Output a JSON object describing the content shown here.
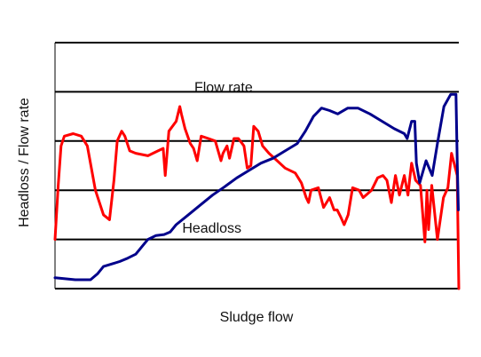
{
  "chart_data": {
    "type": "line",
    "title": "",
    "xlabel": "Sludge flow",
    "ylabel": "Headloss / Flow rate",
    "xlim": [
      0,
      100
    ],
    "ylim": [
      0,
      5
    ],
    "grid": "horizontal",
    "legend": "none",
    "series": [
      {
        "name": "Flow rate",
        "color": "#ff0000",
        "points": [
          [
            0,
            1.0
          ],
          [
            0.8,
            2.1
          ],
          [
            1.5,
            2.9
          ],
          [
            2.3,
            3.1
          ],
          [
            4.5,
            3.15
          ],
          [
            6.5,
            3.1
          ],
          [
            8,
            2.9
          ],
          [
            10,
            2.0
          ],
          [
            12,
            1.5
          ],
          [
            13.5,
            1.4
          ],
          [
            14.6,
            2.2
          ],
          [
            15.4,
            3.0
          ],
          [
            16.5,
            3.2
          ],
          [
            17.3,
            3.1
          ],
          [
            18.5,
            2.8
          ],
          [
            20,
            2.75
          ],
          [
            23,
            2.7
          ],
          [
            25.5,
            2.8
          ],
          [
            26.8,
            2.85
          ],
          [
            27.3,
            2.3
          ],
          [
            28.2,
            3.2
          ],
          [
            30,
            3.4
          ],
          [
            30.9,
            3.7
          ],
          [
            31.3,
            3.55
          ],
          [
            32.2,
            3.25
          ],
          [
            33.5,
            2.95
          ],
          [
            34.3,
            2.85
          ],
          [
            35.2,
            2.6
          ],
          [
            36.2,
            3.1
          ],
          [
            38,
            3.05
          ],
          [
            39.7,
            3.0
          ],
          [
            41.1,
            2.6
          ],
          [
            41.6,
            2.75
          ],
          [
            42.6,
            2.9
          ],
          [
            43.2,
            2.65
          ],
          [
            44.3,
            3.05
          ],
          [
            45.4,
            3.05
          ],
          [
            46.8,
            2.9
          ],
          [
            47.6,
            2.45
          ],
          [
            48.5,
            2.5
          ],
          [
            49.2,
            3.3
          ],
          [
            50.3,
            3.2
          ],
          [
            51.4,
            2.9
          ],
          [
            53,
            2.75
          ],
          [
            55,
            2.6
          ],
          [
            57,
            2.45
          ],
          [
            59.5,
            2.35
          ],
          [
            61,
            2.15
          ],
          [
            62.2,
            1.85
          ],
          [
            62.8,
            1.75
          ],
          [
            63.4,
            2.0
          ],
          [
            65.2,
            2.05
          ],
          [
            66.5,
            1.65
          ],
          [
            68,
            1.85
          ],
          [
            69.1,
            1.6
          ],
          [
            69.9,
            1.6
          ],
          [
            70.8,
            1.45
          ],
          [
            71.6,
            1.3
          ],
          [
            72.6,
            1.5
          ],
          [
            73.7,
            2.05
          ],
          [
            75.3,
            2.0
          ],
          [
            76.3,
            1.85
          ],
          [
            78.4,
            2.0
          ],
          [
            79.9,
            2.25
          ],
          [
            81.2,
            2.3
          ],
          [
            82.2,
            2.2
          ],
          [
            83.3,
            1.75
          ],
          [
            84.3,
            2.3
          ],
          [
            85.3,
            1.9
          ],
          [
            86.5,
            2.3
          ],
          [
            87.4,
            1.9
          ],
          [
            87.8,
            2.2
          ],
          [
            88.3,
            2.55
          ],
          [
            89.3,
            2.2
          ],
          [
            90.5,
            2.1
          ],
          [
            91.6,
            0.95
          ],
          [
            92.1,
            2.0
          ],
          [
            92.5,
            1.2
          ],
          [
            93.3,
            2.1
          ],
          [
            94.7,
            1.0
          ],
          [
            96.2,
            1.85
          ],
          [
            97.3,
            2.05
          ],
          [
            98.2,
            2.75
          ],
          [
            99.6,
            2.3
          ],
          [
            100,
            0.0
          ]
        ]
      },
      {
        "name": "Headloss",
        "color": "#00008b",
        "points": [
          [
            0,
            0.22
          ],
          [
            2.5,
            0.2
          ],
          [
            5,
            0.18
          ],
          [
            7.5,
            0.18
          ],
          [
            8.8,
            0.18
          ],
          [
            10.5,
            0.3
          ],
          [
            12,
            0.45
          ],
          [
            14,
            0.5
          ],
          [
            16,
            0.55
          ],
          [
            18,
            0.62
          ],
          [
            20,
            0.7
          ],
          [
            22,
            0.9
          ],
          [
            23,
            1.0
          ],
          [
            25,
            1.08
          ],
          [
            27,
            1.1
          ],
          [
            28.5,
            1.15
          ],
          [
            30,
            1.3
          ],
          [
            33,
            1.5
          ],
          [
            36,
            1.7
          ],
          [
            39,
            1.9
          ],
          [
            42,
            2.07
          ],
          [
            45,
            2.25
          ],
          [
            48,
            2.4
          ],
          [
            51,
            2.55
          ],
          [
            54,
            2.65
          ],
          [
            57,
            2.8
          ],
          [
            60,
            2.95
          ],
          [
            62,
            3.2
          ],
          [
            64,
            3.5
          ],
          [
            66,
            3.67
          ],
          [
            68,
            3.62
          ],
          [
            70,
            3.55
          ],
          [
            72.5,
            3.67
          ],
          [
            75,
            3.67
          ],
          [
            78,
            3.55
          ],
          [
            81,
            3.4
          ],
          [
            84,
            3.25
          ],
          [
            86.5,
            3.15
          ],
          [
            87.2,
            3.05
          ],
          [
            88.3,
            3.4
          ],
          [
            89.1,
            3.4
          ],
          [
            89.5,
            2.55
          ],
          [
            90.3,
            2.15
          ],
          [
            91.9,
            2.6
          ],
          [
            93.4,
            2.3
          ],
          [
            94.7,
            2.95
          ],
          [
            96.3,
            3.7
          ],
          [
            98,
            3.95
          ],
          [
            99.3,
            3.95
          ],
          [
            99.6,
            2.6
          ],
          [
            99.9,
            1.6
          ]
        ]
      }
    ],
    "annotations": [
      {
        "text": "Flow rate",
        "x": 34.5,
        "y": 4.0
      },
      {
        "text": "Headloss",
        "x": 31.5,
        "y": 1.14
      }
    ]
  }
}
